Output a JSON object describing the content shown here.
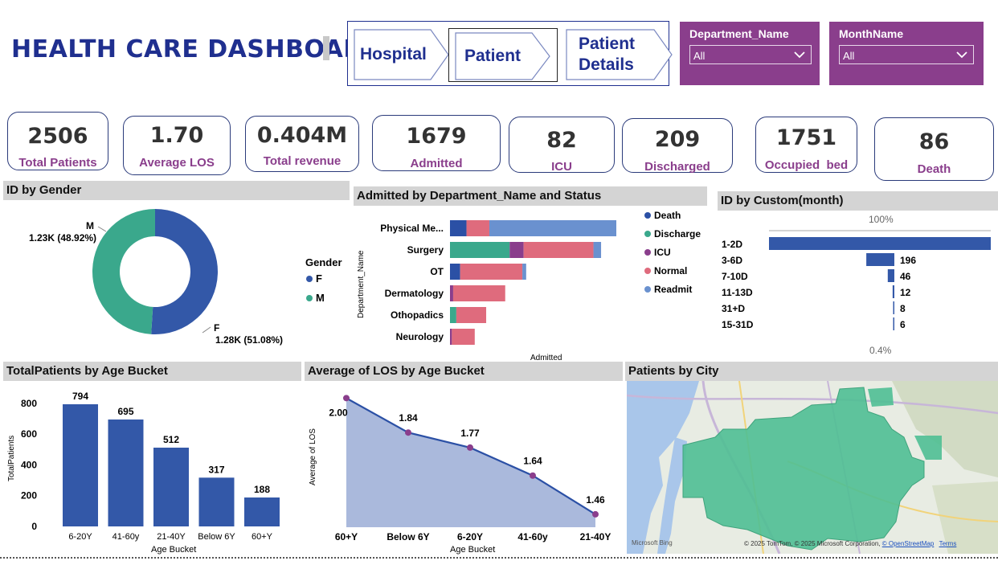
{
  "header": {
    "title": "HEALTH CARE DASHBOARD"
  },
  "nav": {
    "hospital": "Hospital",
    "patient": "Patient",
    "patient_details_1": "Patient",
    "patient_details_2": "Details"
  },
  "slicers": [
    {
      "label": "Department_Name",
      "value": "All"
    },
    {
      "label": "MonthName",
      "value": "All"
    }
  ],
  "kpis": [
    {
      "value": "2506",
      "caption": "Total Patients"
    },
    {
      "value": "1.70",
      "caption": "Average LOS"
    },
    {
      "value": "0.404M",
      "caption": "Total revenue"
    },
    {
      "value": "1679",
      "caption": "Admitted"
    },
    {
      "value": "82",
      "caption": "ICU"
    },
    {
      "value": "209",
      "caption": "Discharged"
    },
    {
      "value": "1751",
      "caption": "Occupied  bed"
    },
    {
      "value": "86",
      "caption": "Death"
    }
  ],
  "colors": {
    "primary": "#3358a8",
    "teal": "#3aa88c",
    "purple": "#8a3e8c",
    "pink": "#df6b7d",
    "lightblue": "#6a91cf",
    "death": "#2b50a5",
    "map_fill": "#4fbf93"
  },
  "gender_chart": {
    "title": "ID by Gender",
    "legend_title": "Gender",
    "legend": [
      "F",
      "M"
    ],
    "label_m_name": "M",
    "label_m_value": "1.23K (48.92%)",
    "label_f_name": "F",
    "label_f_value": "1.28K (51.08%)"
  },
  "dept_chart": {
    "title": "Admitted by Department_Name and Status",
    "ylabel": "Department_Name",
    "xlabel": "Admitted",
    "legend": [
      "Death",
      "Discharge",
      "ICU",
      "Normal",
      "Readmit"
    ]
  },
  "month_chart": {
    "title": "ID by Custom(month)",
    "top_label": "100%",
    "bottom_label": "0.4%"
  },
  "age_chart": {
    "title": "TotalPatients by Age Bucket",
    "ylabel": "TotalPatients",
    "xlabel": "Age Bucket"
  },
  "los_chart": {
    "title": "Average of LOS by Age Bucket",
    "ylabel": "Average of LOS",
    "xlabel": "Age Bucket"
  },
  "map": {
    "title": "Patients by City",
    "brand": "Microsoft Bing",
    "attribution": "© 2025 TomTom, © 2025 Microsoft Corporation,",
    "osm": "© OpenStreetMap",
    "terms": "Terms"
  },
  "chart_data": [
    {
      "type": "pie",
      "title": "ID by Gender",
      "categories": [
        "F",
        "M"
      ],
      "values": [
        1280,
        1230
      ],
      "percent": [
        51.08,
        48.92
      ]
    },
    {
      "type": "bar",
      "orientation": "horizontal",
      "stacked": true,
      "title": "Admitted by Department_Name and Status",
      "xlabel": "Admitted",
      "ylabel": "Department_Name",
      "categories": [
        "Physical Me...",
        "Surgery",
        "OT",
        "Dermatology",
        "Othopadics",
        "Neurology"
      ],
      "series": [
        {
          "name": "Death",
          "values": [
            26,
            0,
            16,
            0,
            0,
            0
          ]
        },
        {
          "name": "Discharge",
          "values": [
            0,
            94,
            0,
            0,
            10,
            0
          ]
        },
        {
          "name": "ICU",
          "values": [
            0,
            22,
            0,
            5,
            0,
            3
          ]
        },
        {
          "name": "Normal",
          "values": [
            36,
            110,
            98,
            82,
            47,
            36
          ]
        },
        {
          "name": "Readmit",
          "values": [
            200,
            12,
            6,
            0,
            0,
            0
          ]
        }
      ]
    },
    {
      "type": "bar",
      "orientation": "horizontal",
      "title": "ID by Custom(month)",
      "categories": [
        "1-2D",
        "3-6D",
        "7-10D",
        "11-13D",
        "31+D",
        "15-31D"
      ],
      "values": [
        1550,
        196,
        46,
        12,
        8,
        6
      ],
      "data_labels": [
        "",
        "196",
        "46",
        "12",
        "8",
        "6"
      ]
    },
    {
      "type": "bar",
      "title": "TotalPatients by Age Bucket",
      "xlabel": "Age Bucket",
      "ylabel": "TotalPatients",
      "categories": [
        "6-20Y",
        "41-60y",
        "21-40Y",
        "Below 6Y",
        "60+Y"
      ],
      "values": [
        794,
        695,
        512,
        317,
        188
      ],
      "yticks": [
        0,
        200,
        400,
        600,
        800
      ],
      "ylim": [
        0,
        850
      ]
    },
    {
      "type": "area",
      "title": "Average of LOS by Age Bucket",
      "xlabel": "Age Bucket",
      "ylabel": "Average of LOS",
      "categories": [
        "60+Y",
        "Below 6Y",
        "6-20Y",
        "41-60y",
        "21-40Y"
      ],
      "values": [
        2.0,
        1.84,
        1.77,
        1.64,
        1.46
      ],
      "labels": [
        "2.00",
        "1.84",
        "1.77",
        "1.64",
        "1.46"
      ],
      "ylim": [
        1.4,
        2.02
      ]
    }
  ]
}
